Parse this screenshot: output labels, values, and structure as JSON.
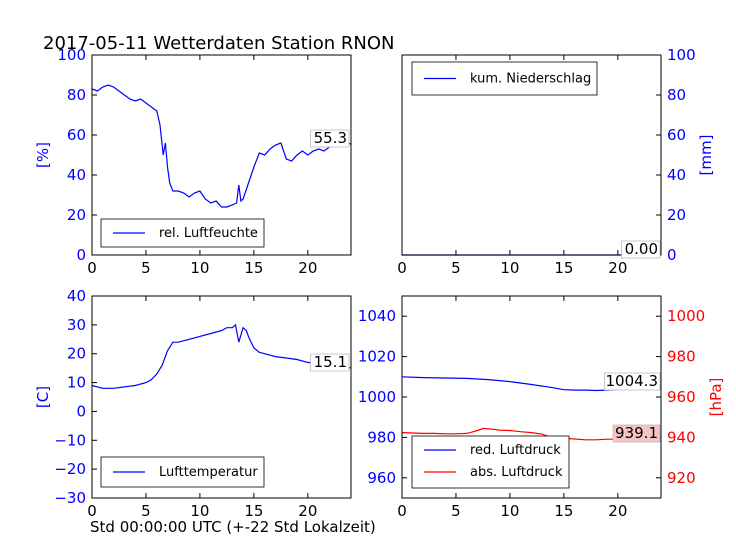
{
  "figure": {
    "title": "2017-05-11 Wetterdaten Station RNON",
    "xlabel": "Std 00:00:00 UTC (+-22 Std Lokalzeit)"
  },
  "colors": {
    "blue": "#0000ff",
    "red": "#ff0000",
    "black": "#000000"
  },
  "chart_data": [
    {
      "type": "line",
      "ylabel": "[%]",
      "xlim": [
        0,
        24
      ],
      "ylim": [
        0,
        100
      ],
      "xticks": [
        "0",
        "5",
        "10",
        "15",
        "20"
      ],
      "yticks": [
        "0",
        "20",
        "40",
        "60",
        "80",
        "100"
      ],
      "legend": "lower-left",
      "last_value_label": "55.3",
      "series": [
        {
          "name": "rel. Luftfeuchte",
          "color": "#0000ff",
          "x": [
            0,
            0.5,
            1,
            1.5,
            2,
            2.5,
            3,
            3.5,
            4,
            4.5,
            5,
            5.5,
            6,
            6.3,
            6.6,
            6.8,
            7,
            7.2,
            7.5,
            8,
            8.5,
            9,
            9.5,
            10,
            10.5,
            11,
            11.5,
            12,
            12.5,
            13,
            13.4,
            13.6,
            13.8,
            14,
            14.5,
            15,
            15.5,
            16,
            16.5,
            17,
            17.5,
            18,
            18.5,
            19,
            19.5,
            20,
            20.5,
            21,
            21.5,
            22,
            22.5,
            23,
            23.5,
            24
          ],
          "values": [
            83,
            82,
            84,
            85,
            84,
            82,
            80,
            78,
            77,
            78,
            76,
            74,
            72,
            65,
            50,
            56,
            44,
            36,
            32,
            32,
            31,
            29,
            31,
            32,
            28,
            26,
            27,
            24,
            24,
            25,
            26,
            35,
            27,
            28,
            36,
            44,
            51,
            50,
            53,
            55,
            56,
            48,
            47,
            50,
            52,
            50,
            52,
            53,
            52,
            54,
            56,
            55,
            57,
            55.3
          ]
        }
      ]
    },
    {
      "type": "line",
      "ylabel": "[mm]",
      "xlim": [
        0,
        24
      ],
      "ylim": [
        0,
        100
      ],
      "xticks": [
        "0",
        "5",
        "10",
        "15",
        "20"
      ],
      "yticks": [
        "0",
        "20",
        "40",
        "60",
        "80",
        "100"
      ],
      "yaxis_side": "right",
      "legend": "upper-left",
      "last_value_label": "0.00",
      "series": [
        {
          "name": "kum. Niederschlag",
          "color": "#0000ff",
          "x": [
            0,
            24
          ],
          "values": [
            0,
            0
          ]
        }
      ]
    },
    {
      "type": "line",
      "ylabel": "[C]",
      "xlim": [
        0,
        24
      ],
      "ylim": [
        -30,
        40
      ],
      "xticks": [
        "0",
        "5",
        "10",
        "15",
        "20"
      ],
      "yticks": [
        "−30",
        "−20",
        "−10",
        "0",
        "10",
        "20",
        "30",
        "40"
      ],
      "legend": "lower-left",
      "last_value_label": "15.1",
      "series": [
        {
          "name": "Lufttemperatur",
          "color": "#0000ff",
          "x": [
            0,
            0.5,
            1,
            2,
            3,
            4,
            5,
            5.5,
            6,
            6.5,
            7,
            7.5,
            8,
            9,
            10,
            11,
            12,
            12.5,
            13,
            13.3,
            13.6,
            14,
            14.3,
            14.6,
            15,
            15.5,
            16,
            17,
            18,
            19,
            20,
            21,
            22,
            23,
            24
          ],
          "values": [
            9,
            8.5,
            8,
            8,
            8.5,
            9,
            10,
            11,
            13,
            16,
            21,
            24,
            24,
            25,
            26,
            27,
            28,
            29,
            29,
            30,
            24,
            29,
            28,
            25,
            22,
            20.5,
            20,
            19,
            18.5,
            18,
            17,
            16.5,
            16,
            15.5,
            15.1
          ]
        }
      ]
    },
    {
      "type": "line",
      "ylabel_left": "",
      "ylabel_right": "[hPa]",
      "xlim": [
        0,
        24
      ],
      "ylim_left": [
        950,
        1050
      ],
      "ylim_right": [
        910,
        1010
      ],
      "xticks": [
        "0",
        "5",
        "10",
        "15",
        "20"
      ],
      "yticks_left": [
        "960",
        "980",
        "1000",
        "1020",
        "1040"
      ],
      "yticks_right": [
        "920",
        "940",
        "960",
        "980",
        "1000"
      ],
      "legend": "lower-left",
      "last_value_labels": [
        "1004.3",
        "939.1"
      ],
      "series": [
        {
          "name": "red. Luftdruck",
          "color": "#0000ff",
          "axis": "left",
          "x": [
            0,
            2,
            4,
            6,
            8,
            10,
            12,
            14,
            15,
            16,
            17,
            18,
            19,
            20,
            21,
            22,
            23,
            24
          ],
          "values": [
            1010,
            1009.6,
            1009.4,
            1009.2,
            1008.6,
            1007.6,
            1006.2,
            1004.6,
            1003.6,
            1003.4,
            1003.4,
            1003.2,
            1003.4,
            1003.6,
            1003.8,
            1004,
            1004.2,
            1004.3
          ]
        },
        {
          "name": "abs. Luftdruck",
          "color": "#ff0000",
          "axis": "right",
          "x": [
            0,
            1,
            2,
            3,
            4,
            5,
            6,
            6.5,
            7,
            7.5,
            8,
            8.5,
            9,
            10,
            11,
            12,
            13,
            13.5,
            14,
            15,
            16,
            17,
            18,
            19,
            20,
            21,
            22,
            23,
            24
          ],
          "values": [
            942.4,
            942.2,
            942,
            942,
            941.8,
            941.8,
            942,
            942.6,
            943.4,
            944.4,
            944.2,
            944,
            943.6,
            943.4,
            942.8,
            942.4,
            941.6,
            940.6,
            940.2,
            939.6,
            939.2,
            938.8,
            938.8,
            939.1,
            939.1,
            939,
            938.9,
            938.8,
            939.1
          ]
        }
      ]
    }
  ]
}
